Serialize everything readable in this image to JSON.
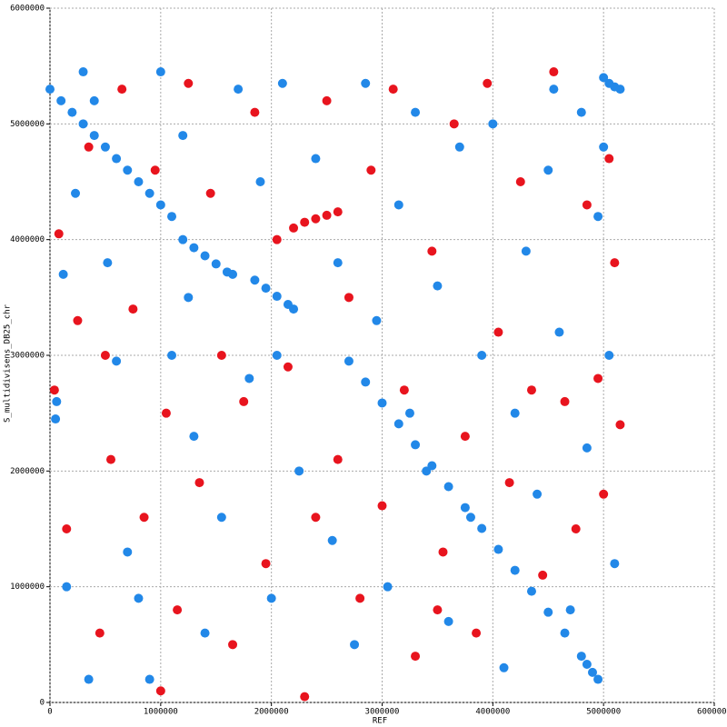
{
  "chart_data": {
    "type": "scatter",
    "x_label": "REF",
    "y_label": "S_multidivisens_DB25_chr",
    "xlim": [
      0,
      6000000
    ],
    "ylim": [
      0,
      6000000
    ],
    "xticks": [
      0,
      1000000,
      2000000,
      3000000,
      4000000,
      5000000,
      6000000
    ],
    "yticks": [
      0,
      1000000,
      2000000,
      3000000,
      4000000,
      5000000,
      6000000
    ],
    "grid": true,
    "series": [
      {
        "color": "#e8141e",
        "x": [
          40000,
          80000,
          150000,
          250000,
          350000,
          450000,
          550000,
          650000,
          750000,
          850000,
          950000,
          1050000,
          1150000,
          1250000,
          1350000,
          1450000,
          1550000,
          1650000,
          1750000,
          1850000,
          1950000,
          2050000,
          2150000,
          2300000,
          2400000,
          2500000,
          2600000,
          2700000,
          2800000,
          2900000,
          3000000,
          3100000,
          3200000,
          3300000,
          3450000,
          3550000,
          3650000,
          3750000,
          3850000,
          3950000,
          4050000,
          4150000,
          4250000,
          4350000,
          4450000,
          4550000,
          4650000,
          4750000,
          4850000,
          4950000,
          5050000,
          5100000,
          5150000,
          5000000,
          500000,
          1000000,
          3500000,
          2200000,
          2300000,
          2400000,
          2500000,
          2600000
        ],
        "values": [
          2700000,
          4050000,
          1500000,
          3300000,
          4800000,
          600000,
          2100000,
          5300000,
          3400000,
          1600000,
          4600000,
          2500000,
          800000,
          5350000,
          1900000,
          4400000,
          3000000,
          500000,
          2600000,
          5100000,
          1200000,
          4000000,
          2900000,
          50000,
          1600000,
          5200000,
          2100000,
          3500000,
          900000,
          4600000,
          1700000,
          5300000,
          2700000,
          400000,
          3900000,
          1300000,
          5000000,
          2300000,
          600000,
          5350000,
          3200000,
          1900000,
          4500000,
          2700000,
          1100000,
          5450000,
          2600000,
          1500000,
          4300000,
          2800000,
          4700000,
          3800000,
          2400000,
          1800000,
          3000000,
          100000,
          800000,
          4100000,
          4150000,
          4180000,
          4210000,
          4240000
        ]
      },
      {
        "color": "#2288e8",
        "x": [
          0,
          100000,
          200000,
          300000,
          400000,
          500000,
          600000,
          700000,
          800000,
          900000,
          1000000,
          1100000,
          1200000,
          1300000,
          1400000,
          1500000,
          1600000,
          1650000,
          1850000,
          1950000,
          2050000,
          2150000,
          2200000,
          2700000,
          2850000,
          3000000,
          3150000,
          3300000,
          3450000,
          3600000,
          3750000,
          3900000,
          4050000,
          4200000,
          4350000,
          4500000,
          4650000,
          4800000,
          4850000,
          4900000,
          4950000,
          5000000,
          5050000,
          5100000,
          5150000,
          60000,
          50000,
          120000,
          230000,
          300000,
          400000,
          520000,
          600000,
          700000,
          800000,
          900000,
          1000000,
          1100000,
          1200000,
          1300000,
          1400000,
          1550000,
          1700000,
          1800000,
          1900000,
          2000000,
          2100000,
          2250000,
          2400000,
          2550000,
          2600000,
          2750000,
          2850000,
          2950000,
          3050000,
          3150000,
          3300000,
          3400000,
          3500000,
          3600000,
          3700000,
          3800000,
          3900000,
          4000000,
          4100000,
          4200000,
          4300000,
          4400000,
          4500000,
          4600000,
          4700000,
          4800000,
          4850000,
          4950000,
          5050000,
          5100000,
          5000000,
          150000,
          350000,
          1250000,
          2050000,
          3250000,
          4550000
        ],
        "values": [
          5300000,
          5200000,
          5100000,
          5000000,
          4900000,
          4800000,
          4700000,
          4600000,
          4500000,
          4400000,
          4300000,
          4200000,
          4000000,
          3930000,
          3860000,
          3790000,
          3720000,
          3700000,
          3650000,
          3580000,
          3510000,
          3440000,
          3400000,
          2950000,
          2769000,
          2588000,
          2408000,
          2227000,
          2046000,
          1865000,
          1684000,
          1504000,
          1323000,
          1142000,
          961000,
          780000,
          600000,
          400000,
          330000,
          260000,
          200000,
          5400000,
          5350000,
          5320000,
          5300000,
          2600000,
          2450000,
          3700000,
          4400000,
          5450000,
          5200000,
          3800000,
          2950000,
          1300000,
          900000,
          200000,
          5450000,
          3000000,
          4900000,
          2300000,
          600000,
          1600000,
          5300000,
          2800000,
          4500000,
          900000,
          5350000,
          2000000,
          4700000,
          1400000,
          3800000,
          500000,
          5350000,
          3300000,
          1000000,
          4300000,
          5100000,
          2000000,
          3600000,
          700000,
          4800000,
          1600000,
          3000000,
          5000000,
          300000,
          2500000,
          3900000,
          1800000,
          4600000,
          3200000,
          800000,
          5100000,
          2200000,
          4200000,
          3000000,
          1200000,
          4800000,
          1000000,
          200000,
          3500000,
          3000000,
          2500000,
          5300000
        ]
      }
    ]
  }
}
